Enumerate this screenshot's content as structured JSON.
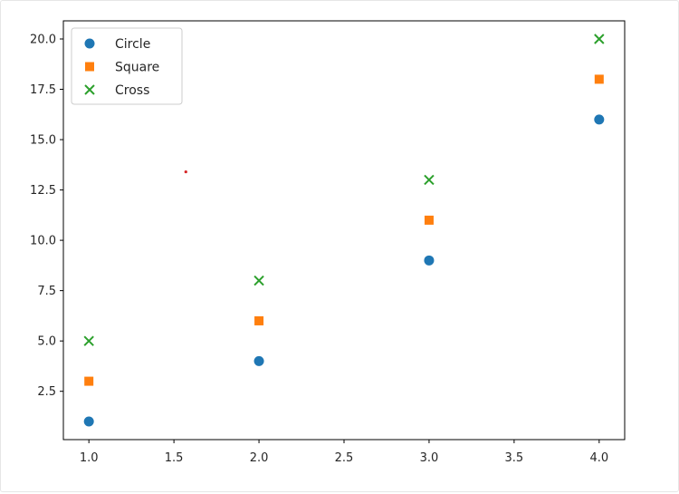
{
  "chart_data": {
    "type": "scatter",
    "title": "",
    "xlabel": "",
    "ylabel": "",
    "xlim": [
      0.85,
      4.15
    ],
    "ylim": [
      0.1,
      20.9
    ],
    "xticks": [
      "1.0",
      "1.5",
      "2.0",
      "2.5",
      "3.0",
      "3.5",
      "4.0"
    ],
    "yticks": [
      "2.5",
      "5.0",
      "7.5",
      "10.0",
      "12.5",
      "15.0",
      "17.5",
      "20.0"
    ],
    "grid": false,
    "legend_position": "top-left",
    "series": [
      {
        "name": "Circle",
        "marker": "circle",
        "color": "#1f77b4",
        "x": [
          1,
          2,
          3,
          4
        ],
        "y": [
          1,
          4,
          9,
          16
        ]
      },
      {
        "name": "Square",
        "marker": "square",
        "color": "#ff7f0e",
        "x": [
          1,
          2,
          3,
          4
        ],
        "y": [
          3,
          6,
          11,
          18
        ]
      },
      {
        "name": "Cross",
        "marker": "x",
        "color": "#2ca02c",
        "x": [
          1,
          2,
          3,
          4
        ],
        "y": [
          5,
          8,
          13,
          20
        ]
      }
    ],
    "annotations": [
      {
        "kind": "dot",
        "color": "#d62728",
        "x": 1.57,
        "y": 13.4
      }
    ]
  }
}
